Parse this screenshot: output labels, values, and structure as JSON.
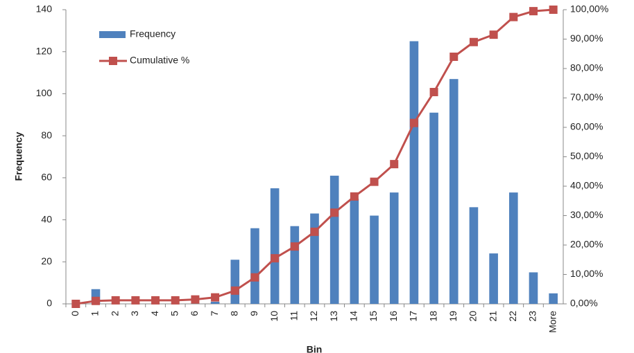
{
  "chart_data": {
    "type": "bar",
    "x_label": "Bin",
    "y_label": "Frequency",
    "categories": [
      "0",
      "1",
      "2",
      "3",
      "4",
      "5",
      "6",
      "7",
      "8",
      "9",
      "10",
      "11",
      "12",
      "13",
      "14",
      "15",
      "16",
      "17",
      "18",
      "19",
      "20",
      "21",
      "22",
      "23",
      "More"
    ],
    "series": [
      {
        "name": "Frequency",
        "color": "#4f81bd",
        "values": [
          0,
          7,
          0,
          0,
          0,
          0,
          0,
          1,
          21,
          36,
          55,
          37,
          43,
          61,
          50,
          42,
          53,
          125,
          91,
          107,
          46,
          24,
          53,
          15,
          5
        ]
      },
      {
        "name": "Cumulative %",
        "color": "#c0504d",
        "axis": "y2",
        "values": [
          0,
          1,
          1.2,
          1.2,
          1.2,
          1.2,
          1.5,
          2.2,
          4.5,
          9,
          15.5,
          19.5,
          24.5,
          31,
          36.5,
          41.5,
          47.5,
          61.5,
          72,
          84,
          89,
          91.5,
          97.5,
          99.5,
          100
        ]
      }
    ],
    "ylim": [
      0,
      140
    ],
    "yticks": [
      0,
      20,
      40,
      60,
      80,
      100,
      120,
      140
    ],
    "y2lim": [
      0,
      100
    ],
    "y2ticks": [
      {
        "value": 0,
        "label": "0,00%"
      },
      {
        "value": 10,
        "label": "10,00%"
      },
      {
        "value": 20,
        "label": "20,00%"
      },
      {
        "value": 30,
        "label": "30,00%"
      },
      {
        "value": 40,
        "label": "40,00%"
      },
      {
        "value": 50,
        "label": "50,00%"
      },
      {
        "value": 60,
        "label": "60,00%"
      },
      {
        "value": 70,
        "label": "70,00%"
      },
      {
        "value": 80,
        "label": "80,00%"
      },
      {
        "value": 90,
        "label": "90,00%"
      },
      {
        "value": 100,
        "label": "100,00%"
      }
    ],
    "legend": "top-left"
  }
}
